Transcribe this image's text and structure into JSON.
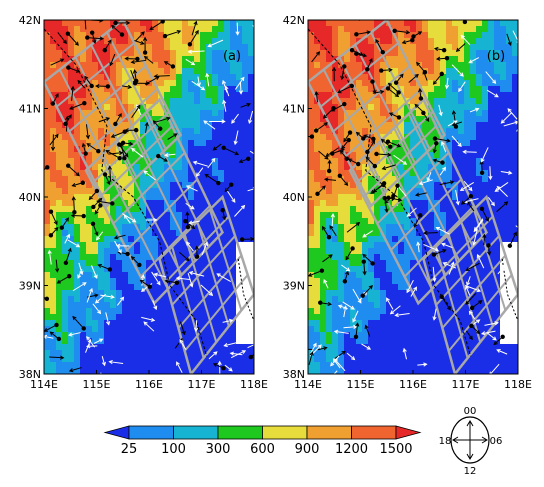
{
  "panels": [
    {
      "label": "(a)"
    },
    {
      "label": "(b)"
    }
  ],
  "lat_ticks": [
    "38N",
    "39N",
    "40N",
    "41N",
    "42N"
  ],
  "lon_ticks": [
    "114E",
    "115E",
    "116E",
    "117E",
    "118E"
  ],
  "colorbar": {
    "levels": [
      "25",
      "100",
      "300",
      "600",
      "900",
      "1200",
      "1500"
    ],
    "colors": [
      "#1a2ee8",
      "#1f8cf0",
      "#16b4d2",
      "#1ec81e",
      "#e6dc3c",
      "#f0a030",
      "#f06430",
      "#e62828"
    ]
  },
  "wind_key": {
    "top": "00",
    "right": "06",
    "bottom": "12",
    "left": "18"
  },
  "colors": {
    "hatch": "#a8a8a8",
    "border": "#000000",
    "vector_white": "#ffffff",
    "vector_black": "#000000"
  }
}
